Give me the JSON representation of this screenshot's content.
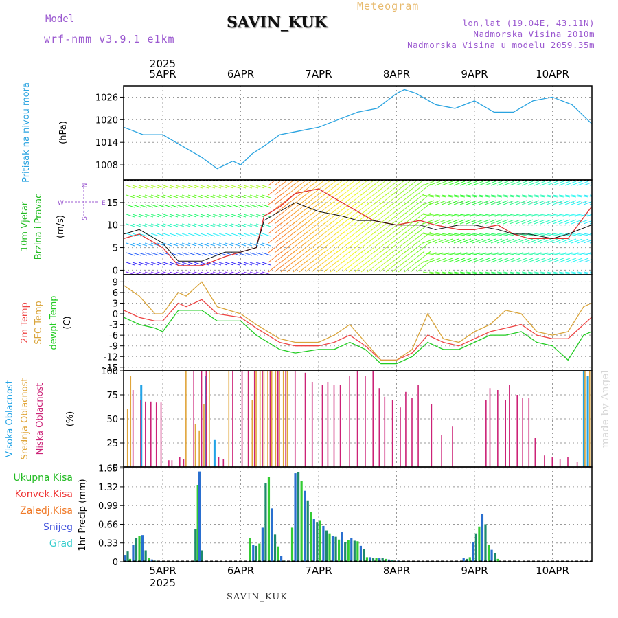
{
  "header": {
    "title": "SAVIN_KUK",
    "meteogram": "Meteogram",
    "model_label": "Model",
    "model_name": "wrf-nmm_v3.9.1 e1km",
    "lonlat": "lon,lat (19.04E, 43.11N)",
    "elevation": "Nadmorska Visina 2010m",
    "model_elevation": "Nadmorska Visina u modelu 2059.35m"
  },
  "footer": {
    "station": "SAVIN_KUK",
    "watermark": "made by Angel"
  },
  "colors": {
    "pressure": "#29a3e0",
    "wind_label": "#22bb22",
    "temp2m": "#ee4444",
    "sfc_temp": "#d9a43a",
    "dewpt": "#22cc22",
    "cloud_high": "#22a3e6",
    "cloud_mid": "#e0a53a",
    "cloud_low": "#cc2277",
    "grid": "#999999"
  },
  "chart_data": [
    {
      "type": "line",
      "panel": "pressure",
      "ylabel": [
        "Pritisak na nivou mora",
        "(hPa)"
      ],
      "yticks": [
        1008,
        1014,
        1020,
        1026
      ],
      "ylim": [
        1004,
        1029
      ],
      "x_top": {
        "year": "2025",
        "days": [
          "5APR",
          "6APR",
          "7APR",
          "8APR",
          "9APR",
          "10APR"
        ]
      },
      "x": [
        -0.5,
        -0.25,
        0,
        0.25,
        0.5,
        0.7,
        0.9,
        1.0,
        1.15,
        1.3,
        1.5,
        1.75,
        2.0,
        2.25,
        2.5,
        2.75,
        3.0,
        3.1,
        3.25,
        3.5,
        3.75,
        4.0,
        4.25,
        4.5,
        4.75,
        5.0,
        5.25,
        5.5
      ],
      "series": [
        {
          "values": [
            1018,
            1016,
            1016,
            1013,
            1010,
            1007,
            1009,
            1008,
            1011,
            1013,
            1016,
            1017,
            1018,
            1020,
            1022,
            1023,
            1027,
            1028,
            1027,
            1024,
            1023,
            1025,
            1022,
            1022,
            1025,
            1026,
            1024,
            1019
          ]
        }
      ]
    },
    {
      "type": "line",
      "panel": "wind",
      "ylabel": [
        "10m Vjetar",
        "Brzina i Pravac",
        "(m/s)"
      ],
      "compass": [
        "W",
        "E",
        "N",
        "S"
      ],
      "yticks": [
        0,
        5,
        10,
        15
      ],
      "ylim": [
        -1,
        20
      ],
      "x": [
        -0.5,
        -0.3,
        0,
        0.2,
        0.5,
        0.8,
        1.0,
        1.2,
        1.3,
        1.5,
        1.7,
        2.0,
        2.3,
        2.5,
        2.7,
        3.0,
        3.3,
        3.5,
        3.8,
        4.0,
        4.3,
        4.5,
        4.7,
        5.0,
        5.2,
        5.5
      ],
      "series": [
        {
          "values": [
            7,
            8,
            5,
            1,
            1,
            3,
            4,
            5,
            12,
            14,
            17,
            18,
            15,
            13,
            11,
            10,
            11,
            10,
            9,
            9,
            10,
            8,
            7,
            7,
            7,
            14
          ]
        },
        {
          "values": [
            8,
            9,
            6,
            2,
            2,
            4,
            4,
            5,
            11,
            13,
            15,
            13,
            12,
            11,
            11,
            10,
            10,
            9,
            10,
            10,
            9,
            8,
            8,
            7,
            8,
            10
          ]
        }
      ]
    },
    {
      "type": "line",
      "panel": "temperature",
      "ylabel": [
        "2m Temp",
        "SFC Temp",
        "dewpt Temp",
        "(C)"
      ],
      "yticks": [
        -15,
        -12,
        -9,
        -6,
        -3,
        0,
        3,
        6,
        9
      ],
      "ylim": [
        -16,
        11
      ],
      "x": [
        -0.5,
        -0.3,
        -0.1,
        0,
        0.2,
        0.3,
        0.5,
        0.7,
        1.0,
        1.2,
        1.5,
        1.7,
        2.0,
        2.2,
        2.4,
        2.6,
        2.8,
        3.0,
        3.2,
        3.4,
        3.6,
        3.8,
        4.0,
        4.2,
        4.4,
        4.6,
        4.8,
        5.0,
        5.2,
        5.4,
        5.5
      ],
      "series": [
        {
          "name": "2m Temp",
          "values": [
            1,
            -1,
            -2,
            -2,
            3,
            2,
            4,
            0,
            -1,
            -4,
            -8,
            -9,
            -9,
            -8,
            -6,
            -9,
            -13,
            -13,
            -11,
            -6,
            -8,
            -9,
            -7,
            -5,
            -4,
            -3,
            -6,
            -7,
            -7,
            -3,
            -1
          ]
        },
        {
          "name": "SFC Temp",
          "values": [
            8,
            5,
            0,
            0,
            6,
            5,
            9,
            2,
            0,
            -3,
            -7,
            -8,
            -8,
            -6,
            -3,
            -8,
            -13,
            -13,
            -10,
            0,
            -7,
            -8,
            -5,
            -3,
            1,
            0,
            -5,
            -6,
            -5,
            2,
            3
          ]
        },
        {
          "name": "dewpt Temp",
          "values": [
            -1,
            -3,
            -4,
            -5,
            1,
            1,
            1,
            -2,
            -2,
            -6,
            -10,
            -11,
            -10,
            -10,
            -8,
            -10,
            -14,
            -14,
            -12,
            -8,
            -10,
            -10,
            -8,
            -6,
            -6,
            -5,
            -8,
            -9,
            -13,
            -6,
            -5
          ]
        }
      ]
    },
    {
      "type": "bar",
      "panel": "clouds",
      "ylabel": [
        "Visoka Oblacnost",
        "Srednja Oblacnost",
        "Niska Oblacnost",
        "(%)"
      ],
      "yticks": [
        0,
        25,
        50,
        75,
        100
      ],
      "ylim": [
        0,
        100
      ],
      "series": [
        {
          "name": "Visoka Oblacnost",
          "x": [
            -0.28,
            0.55,
            0.66,
            5.4,
            5.45
          ],
          "values": [
            85,
            95,
            28,
            100,
            95
          ]
        },
        {
          "name": "Srednja Oblacnost",
          "x": [
            -0.45,
            -0.41,
            0.3,
            0.42,
            0.47,
            0.53,
            0.6,
            0.85,
            1.1,
            1.15,
            1.2,
            1.25,
            1.3,
            1.35,
            1.4,
            1.45,
            1.5,
            1.55,
            1.6,
            5.42,
            5.48
          ],
          "values": [
            60,
            95,
            100,
            45,
            38,
            65,
            100,
            100,
            100,
            70,
            100,
            100,
            100,
            100,
            100,
            100,
            100,
            100,
            100,
            100,
            100
          ]
        },
        {
          "name": "Niska Oblacnost",
          "x": [
            -0.38,
            -0.28,
            -0.22,
            -0.15,
            -0.08,
            -0.02,
            0.08,
            0.12,
            0.22,
            0.27,
            0.4,
            0.5,
            0.56,
            0.72,
            0.78,
            0.9,
            1.02,
            1.1,
            1.18,
            1.28,
            1.38,
            1.48,
            1.58,
            1.7,
            1.83,
            1.92,
            2.05,
            2.12,
            2.2,
            2.28,
            2.4,
            2.5,
            2.6,
            2.7,
            2.78,
            2.85,
            2.95,
            3.05,
            3.12,
            3.2,
            3.28,
            3.45,
            3.58,
            3.72,
            4.15,
            4.2,
            4.3,
            4.4,
            4.45,
            4.55,
            4.62,
            4.7,
            4.78,
            4.9,
            5.0,
            5.1,
            5.2,
            5.32
          ],
          "values": [
            80,
            70,
            68,
            68,
            67,
            67,
            7,
            7,
            10,
            8,
            100,
            100,
            100,
            10,
            8,
            100,
            100,
            100,
            100,
            100,
            100,
            100,
            100,
            100,
            98,
            88,
            85,
            88,
            85,
            85,
            95,
            100,
            95,
            100,
            82,
            73,
            70,
            62,
            78,
            72,
            85,
            65,
            33,
            42,
            70,
            82,
            80,
            70,
            85,
            75,
            72,
            72,
            30,
            12,
            10,
            8,
            10,
            5
          ]
        }
      ]
    },
    {
      "type": "bar",
      "panel": "precip",
      "ylabel": [
        "1hr Precip (mm)"
      ],
      "legend": [
        "Ukupna Kisa",
        "Konvek.Kisa",
        "Zaledj.Kisa",
        "Snijeg",
        "Grad"
      ],
      "yticks": [
        0,
        0.33,
        0.66,
        0.99,
        1.32,
        1.65
      ],
      "ylim": [
        0,
        1.67
      ],
      "x": [
        -0.48,
        -0.45,
        -0.42,
        -0.38,
        -0.34,
        -0.3,
        -0.26,
        -0.22,
        -0.18,
        -0.14,
        -0.1,
        -0.06,
        -0.02,
        0.42,
        0.45,
        0.47,
        0.5,
        1.12,
        1.16,
        1.2,
        1.24,
        1.28,
        1.32,
        1.36,
        1.4,
        1.44,
        1.48,
        1.52,
        1.56,
        1.66,
        1.7,
        1.74,
        1.78,
        1.82,
        1.86,
        1.9,
        1.94,
        1.98,
        2.02,
        2.06,
        2.1,
        2.14,
        2.18,
        2.22,
        2.26,
        2.3,
        2.34,
        2.38,
        2.42,
        2.46,
        2.5,
        2.54,
        2.58,
        2.62,
        2.66,
        2.7,
        2.74,
        2.78,
        2.82,
        2.86,
        2.9,
        2.94,
        2.98,
        3.02,
        3.06,
        3.1,
        3.14,
        3.18,
        3.22,
        3.26,
        3.3,
        3.34,
        3.38,
        3.42,
        3.46,
        3.5,
        3.54,
        3.58,
        3.62,
        3.66,
        3.7,
        3.74,
        3.78,
        3.82,
        3.86,
        3.9,
        3.94,
        3.98,
        4.02,
        4.06,
        4.1,
        4.14,
        4.18,
        4.22,
        4.26,
        4.3,
        4.34,
        4.38,
        4.42,
        4.46,
        4.5,
        4.54,
        4.58,
        4.62,
        4.66,
        4.7,
        4.74,
        4.78,
        4.82,
        4.86,
        4.9,
        4.94,
        4.98,
        5.02,
        5.06,
        5.1,
        5.14,
        5.18,
        5.22,
        5.26,
        5.3,
        5.34,
        5.38,
        5.42,
        5.46,
        5.5
      ],
      "series": [
        {
          "name": "Ukupna Kisa",
          "values": [
            0.12,
            0.18,
            0.05,
            0.3,
            0.42,
            0.45,
            0.47,
            0.2,
            0.06,
            0.04,
            0.02,
            0.01,
            0.01,
            0.58,
            1.35,
            1.59,
            0.2,
            0.42,
            0.3,
            0.28,
            0.32,
            0.6,
            1.38,
            1.5,
            0.94,
            0.48,
            0.27,
            0.1,
            0.02,
            0.6,
            1.56,
            1.58,
            1.42,
            1.25,
            1.08,
            0.88,
            0.75,
            0.7,
            0.72,
            0.63,
            0.55,
            0.5,
            0.46,
            0.44,
            0.39,
            0.52,
            0.34,
            0.38,
            0.42,
            0.37,
            0.36,
            0.28,
            0.22,
            0.08,
            0.08,
            0.06,
            0.07,
            0.06,
            0.07,
            0.05,
            0.04,
            0.03,
            0.02,
            0.02,
            0.01,
            0.01,
            0.0,
            0.0,
            0.0,
            0.0,
            0.0,
            0.0,
            0.0,
            0.0,
            0.0,
            0.0,
            0.0,
            0.0,
            0.0,
            0.0,
            0.0,
            0.0,
            0.0,
            0.0,
            0.07,
            0.05,
            0.08,
            0.34,
            0.5,
            0.62,
            0.84,
            0.66,
            0.3,
            0.21,
            0.15,
            0.05,
            0.0,
            0.0,
            0.0,
            0.0,
            0.0,
            0.0,
            0.0,
            0.0,
            0.0,
            0.0,
            0.0,
            0.0,
            0.0,
            0.0,
            0.0,
            0.0,
            0.0,
            0.0,
            0.0,
            0.0,
            0.0,
            0.0,
            0.0,
            0.0,
            0.0,
            0.0,
            0.0,
            0.0,
            0.0,
            0.0
          ]
        }
      ]
    }
  ]
}
